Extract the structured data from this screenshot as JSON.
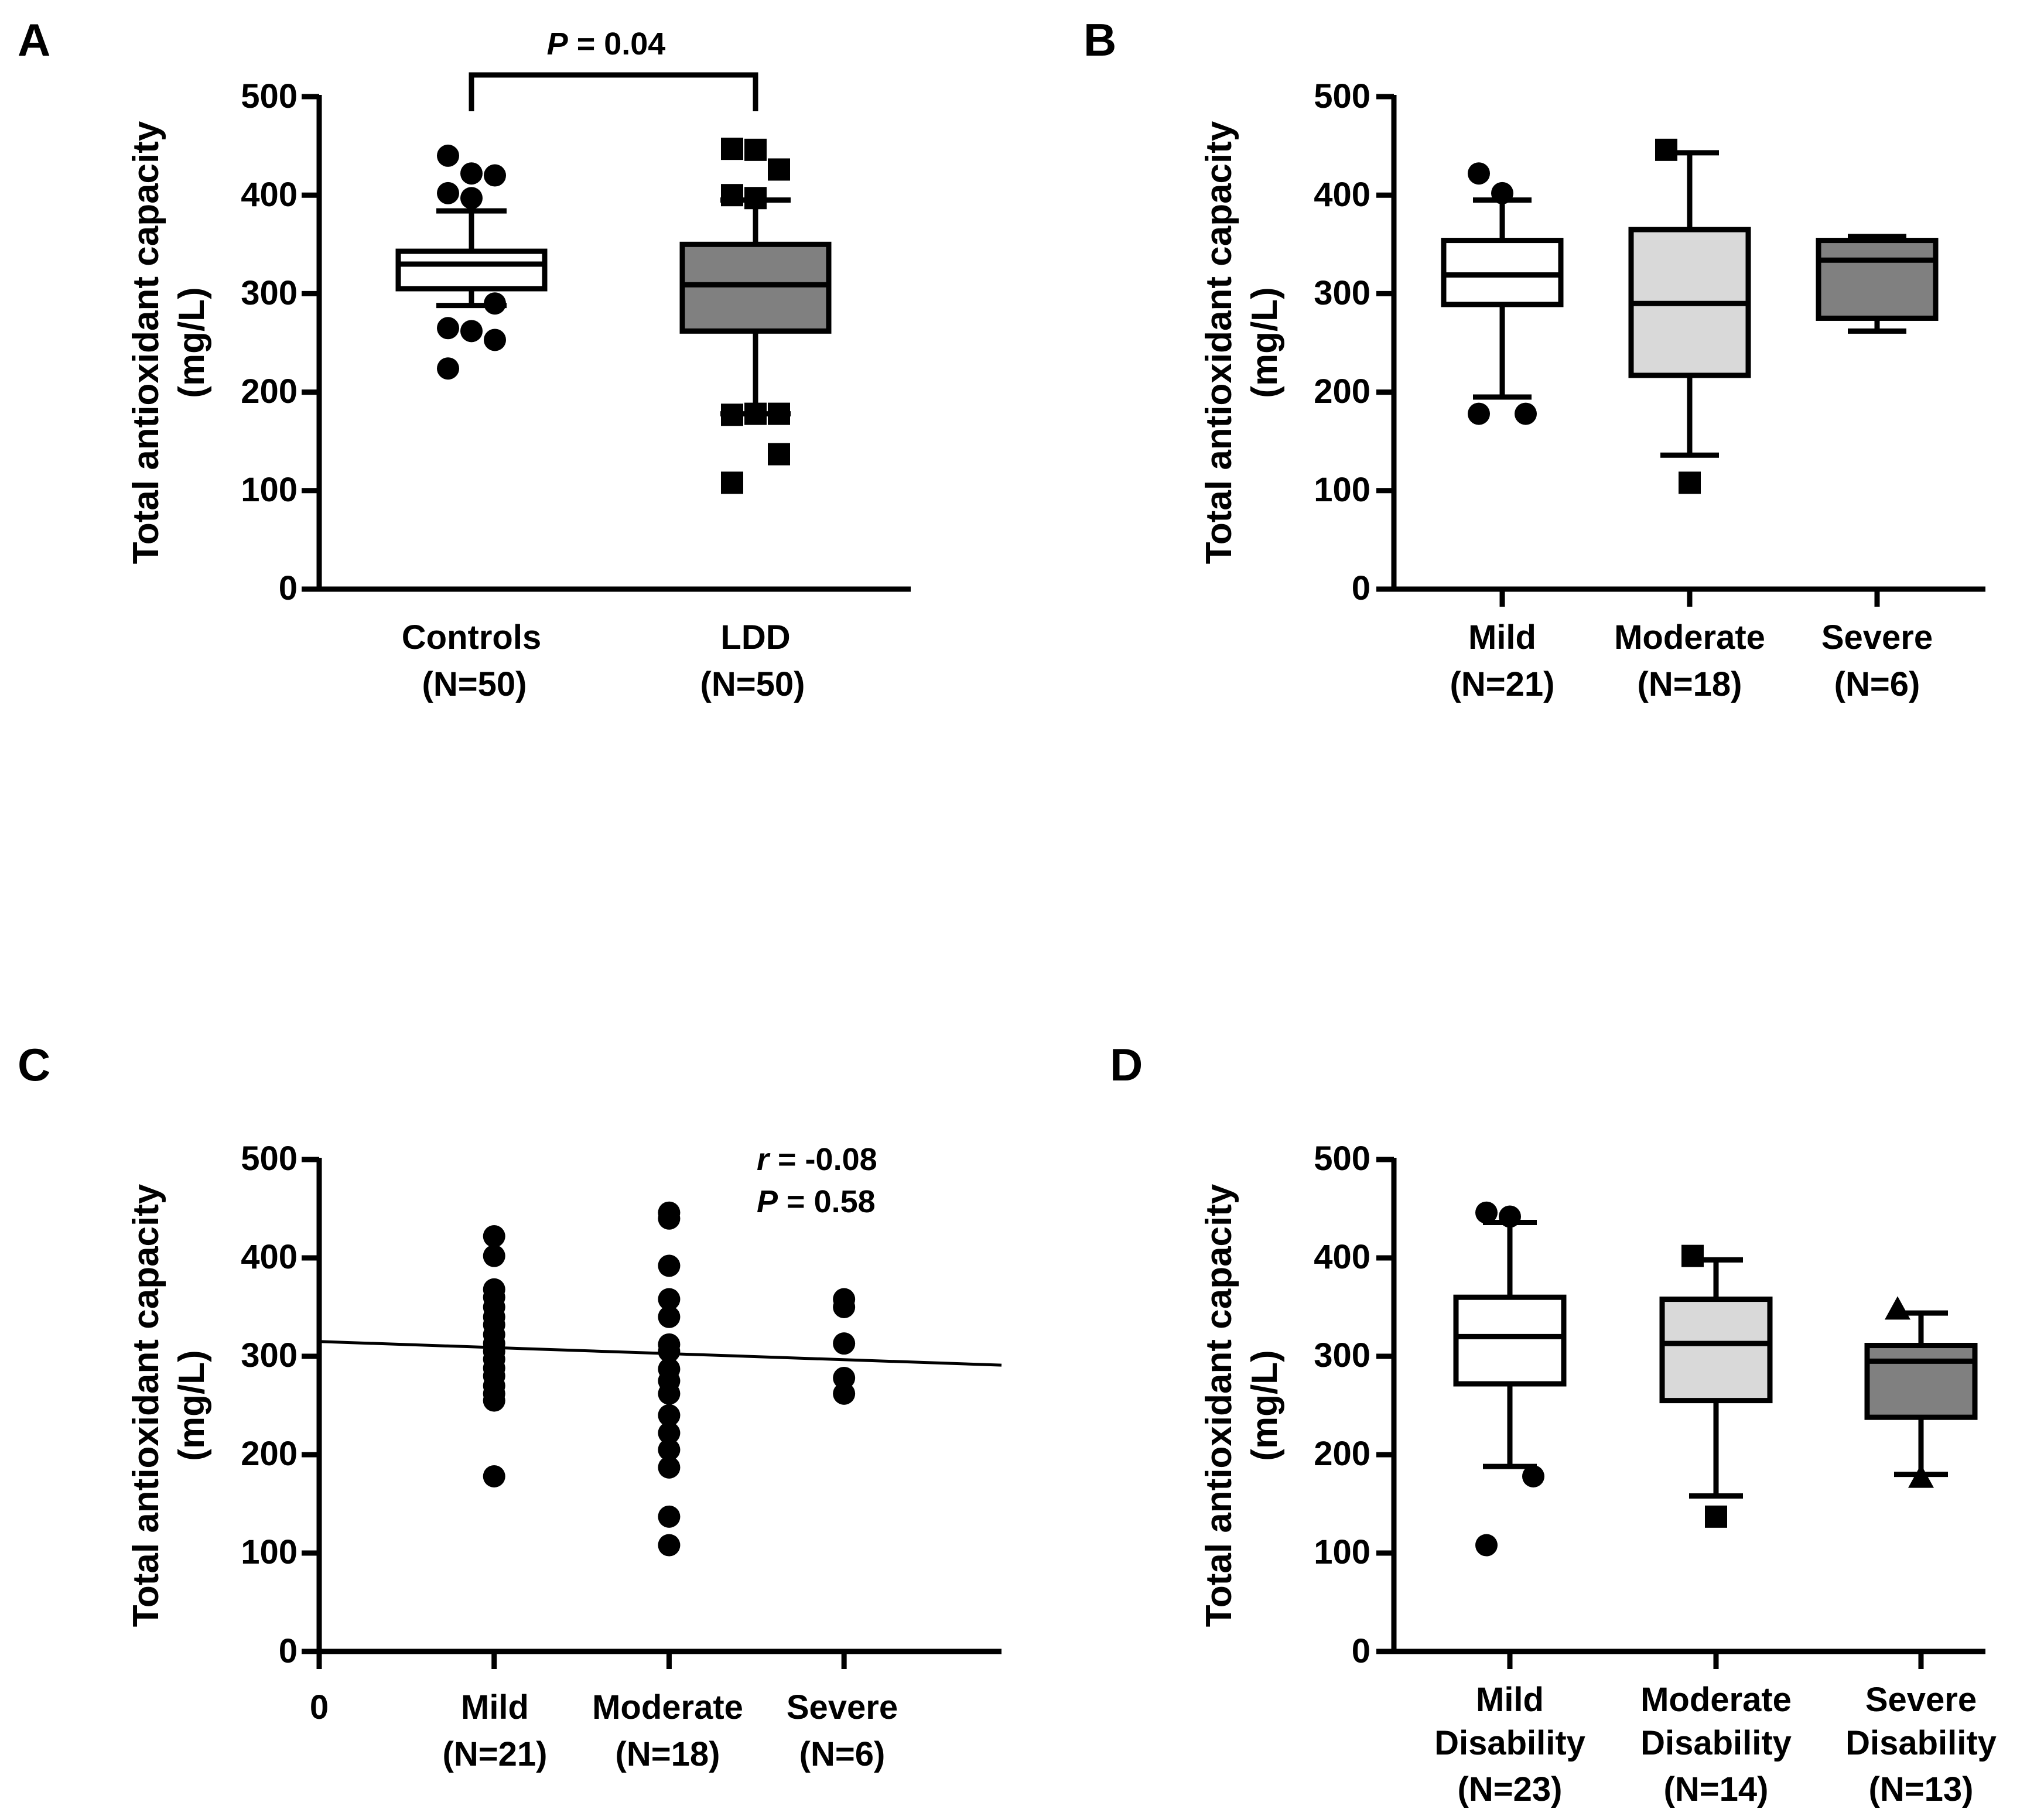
{
  "colors": {
    "ink": "#000000",
    "box_white": "#ffffff",
    "box_light_gray": "#d9d9d9",
    "box_gray": "#808080"
  },
  "chart_data": [
    {
      "id": "A",
      "panel_label": "A",
      "type": "box",
      "ylabel_line1": "Total antioxidant capacity",
      "ylabel_line2": "(mg/L)",
      "ylim": [
        0,
        500
      ],
      "yticks": [
        "0",
        "100",
        "200",
        "300",
        "400",
        "500"
      ],
      "annotation": {
        "italic": "P",
        "text": " = 0.04",
        "between": [
          0,
          1
        ]
      },
      "groups": [
        {
          "label": "Controls",
          "n": "(N=50)",
          "fill": "box_white",
          "marker": "circle",
          "q1": 305,
          "median": 330,
          "q3": 343,
          "whisker_low": 288,
          "whisker_high": 384,
          "outliers": [
            440,
            422,
            420,
            402,
            397,
            290,
            265,
            262,
            253,
            224
          ]
        },
        {
          "label": "LDD",
          "n": "(N=50)",
          "fill": "box_gray",
          "marker": "square",
          "q1": 262,
          "median": 309,
          "q3": 350,
          "whisker_low": 178,
          "whisker_high": 395,
          "outliers": [
            447,
            446,
            426,
            400,
            397,
            178,
            177,
            178,
            137,
            108
          ]
        }
      ]
    },
    {
      "id": "B",
      "panel_label": "B",
      "type": "box",
      "ylabel_line1": "Total antioxidant capacity",
      "ylabel_line2": "(mg/L)",
      "ylim": [
        0,
        500
      ],
      "yticks": [
        "0",
        "100",
        "200",
        "300",
        "400",
        "500"
      ],
      "groups": [
        {
          "label": "Mild",
          "n": "(N=21)",
          "fill": "box_white",
          "marker": "circle",
          "q1": 289,
          "median": 319,
          "q3": 354,
          "whisker_low": 195,
          "whisker_high": 395,
          "outliers": [
            422,
            402,
            178,
            178
          ]
        },
        {
          "label": "Moderate",
          "n": "(N=18)",
          "fill": "box_light_gray",
          "marker": "square",
          "q1": 217,
          "median": 290,
          "q3": 365,
          "whisker_low": 136,
          "whisker_high": 443,
          "outliers": [
            446,
            108
          ]
        },
        {
          "label": "Severe",
          "n": "(N=6)",
          "fill": "box_gray",
          "marker": "none",
          "q1": 275,
          "median": 334,
          "q3": 354,
          "whisker_low": 262,
          "whisker_high": 358,
          "outliers": []
        }
      ]
    },
    {
      "id": "C",
      "panel_label": "C",
      "type": "scatter",
      "ylabel_line1": "Total antioxidant capacity",
      "ylabel_line2": "(mg/L)",
      "ylim": [
        0,
        500
      ],
      "xlim": [
        0,
        3.9
      ],
      "yticks": [
        "0",
        "100",
        "200",
        "300",
        "400",
        "500"
      ],
      "x_zero_label": "0",
      "annotation": {
        "r_italic": "r",
        "r_text": " = -0.08",
        "p_italic": "P",
        "p_text": " = 0.58"
      },
      "categories": [
        {
          "label": "Mild",
          "n": "(N=21)",
          "x": 1
        },
        {
          "label": "Moderate",
          "n": "(N=18)",
          "x": 2
        },
        {
          "label": "Severe",
          "n": "(N=6)",
          "x": 3
        }
      ],
      "points": [
        {
          "x": 1,
          "y": 422
        },
        {
          "x": 1,
          "y": 402
        },
        {
          "x": 1,
          "y": 368
        },
        {
          "x": 1,
          "y": 360
        },
        {
          "x": 1,
          "y": 350
        },
        {
          "x": 1,
          "y": 340
        },
        {
          "x": 1,
          "y": 332
        },
        {
          "x": 1,
          "y": 322
        },
        {
          "x": 1,
          "y": 313
        },
        {
          "x": 1,
          "y": 305
        },
        {
          "x": 1,
          "y": 297
        },
        {
          "x": 1,
          "y": 288
        },
        {
          "x": 1,
          "y": 280
        },
        {
          "x": 1,
          "y": 270
        },
        {
          "x": 1,
          "y": 262
        },
        {
          "x": 1,
          "y": 255
        },
        {
          "x": 1,
          "y": 178
        },
        {
          "x": 2,
          "y": 446
        },
        {
          "x": 2,
          "y": 440
        },
        {
          "x": 2,
          "y": 392
        },
        {
          "x": 2,
          "y": 358
        },
        {
          "x": 2,
          "y": 340
        },
        {
          "x": 2,
          "y": 312
        },
        {
          "x": 2,
          "y": 305
        },
        {
          "x": 2,
          "y": 287
        },
        {
          "x": 2,
          "y": 275
        },
        {
          "x": 2,
          "y": 262
        },
        {
          "x": 2,
          "y": 240
        },
        {
          "x": 2,
          "y": 222
        },
        {
          "x": 2,
          "y": 205
        },
        {
          "x": 2,
          "y": 187
        },
        {
          "x": 2,
          "y": 137
        },
        {
          "x": 2,
          "y": 108
        },
        {
          "x": 3,
          "y": 358
        },
        {
          "x": 3,
          "y": 350
        },
        {
          "x": 3,
          "y": 313
        },
        {
          "x": 3,
          "y": 278
        },
        {
          "x": 3,
          "y": 262
        }
      ],
      "regression": {
        "x": [
          0,
          3.9
        ],
        "y": [
          315,
          291
        ]
      }
    },
    {
      "id": "D",
      "panel_label": "D",
      "type": "box",
      "ylabel_line1": "Total antioxidant capacity",
      "ylabel_line2": "(mg/L)",
      "ylim": [
        0,
        500
      ],
      "yticks": [
        "0",
        "100",
        "200",
        "300",
        "400",
        "500"
      ],
      "groups": [
        {
          "label": "Mild",
          "label2": "Disability",
          "n": "(N=23)",
          "fill": "box_white",
          "marker": "circle",
          "q1": 272,
          "median": 320,
          "q3": 360,
          "whisker_low": 188,
          "whisker_high": 436,
          "outliers": [
            446,
            442,
            178,
            108
          ]
        },
        {
          "label": "Moderate",
          "label2": "Disability",
          "n": "(N=14)",
          "fill": "box_light_gray",
          "marker": "square",
          "q1": 255,
          "median": 313,
          "q3": 358,
          "whisker_low": 158,
          "whisker_high": 398,
          "outliers": [
            402,
            137
          ]
        },
        {
          "label": "Severe",
          "label2": "Disability",
          "n": "(N=13)",
          "fill": "box_gray",
          "marker": "triangle",
          "q1": 238,
          "median": 295,
          "q3": 311,
          "whisker_low": 180,
          "whisker_high": 344,
          "outliers": [
            348,
            177
          ]
        }
      ]
    }
  ]
}
